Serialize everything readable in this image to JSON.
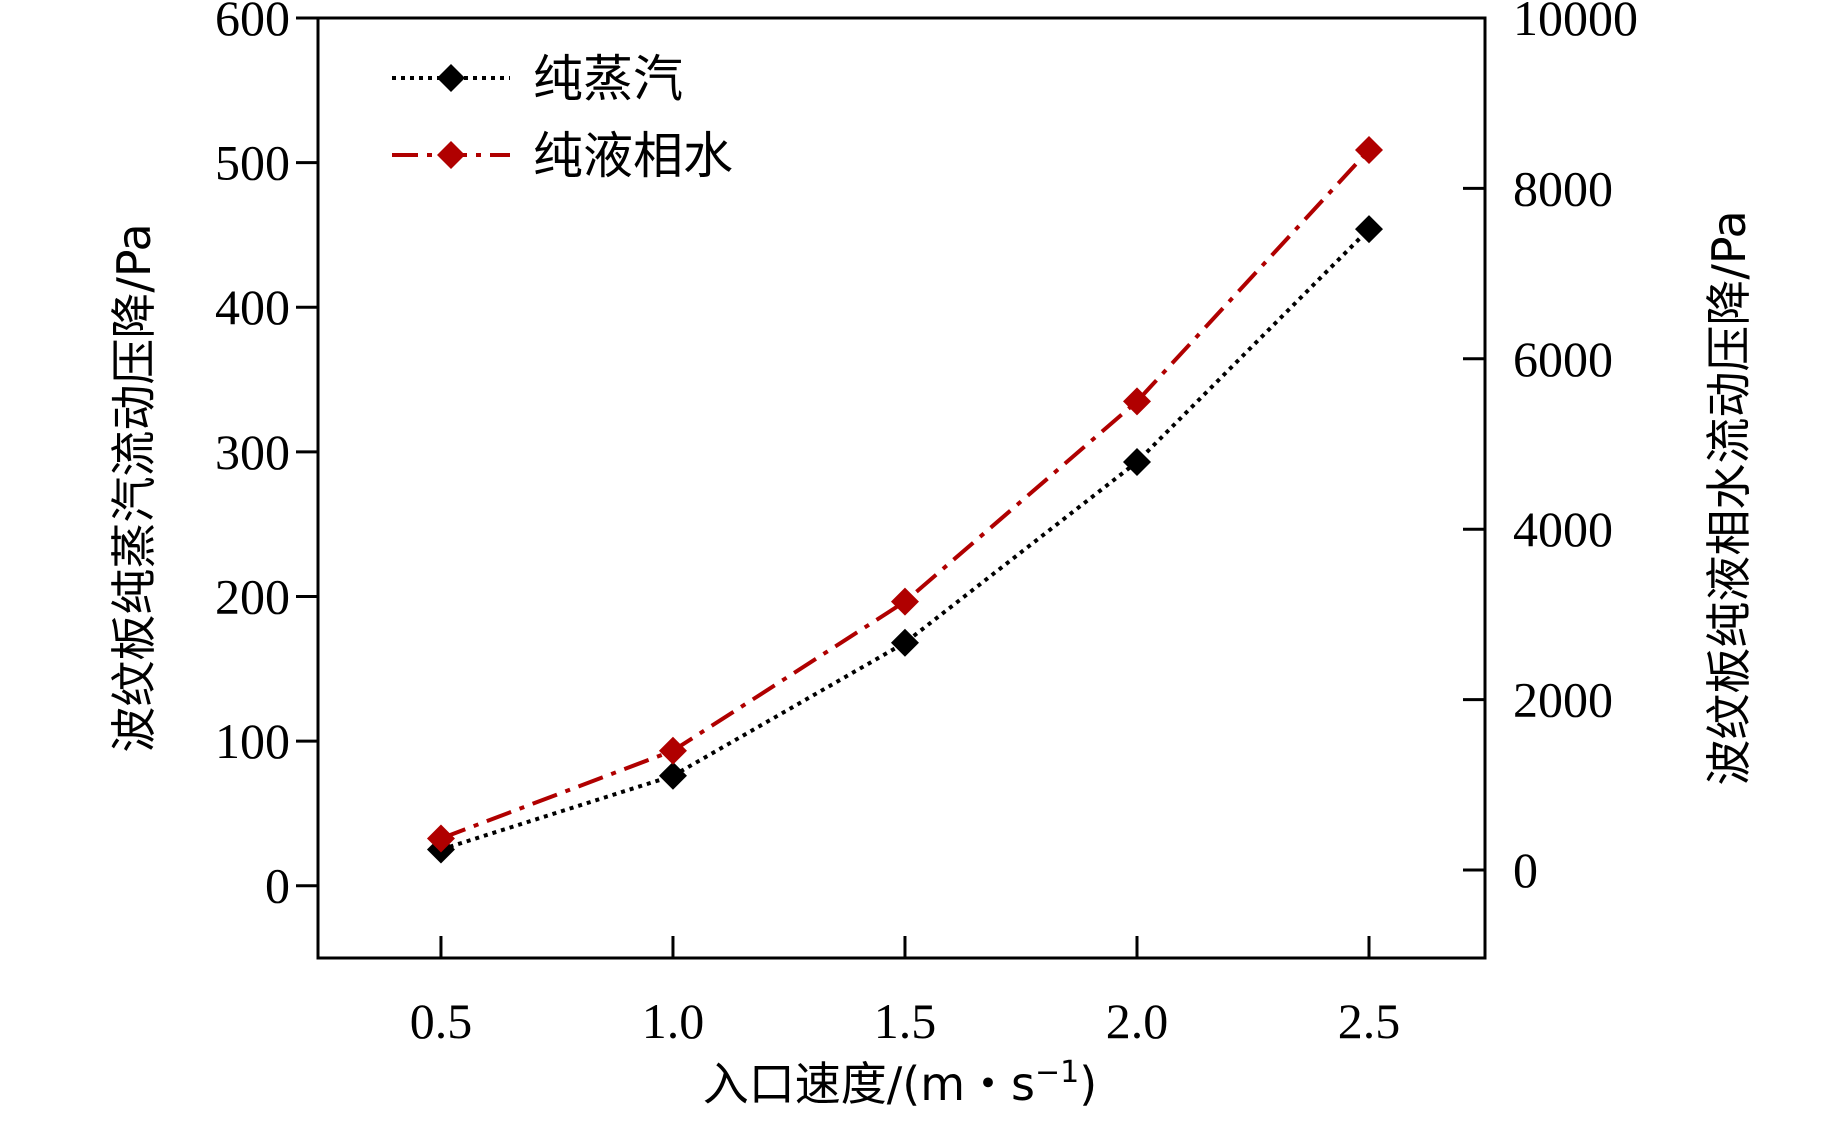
{
  "chart_data": {
    "type": "line",
    "x": [
      0.5,
      1.0,
      1.5,
      2.0,
      2.5
    ],
    "x_tick_labels": [
      "0.5",
      "1.0",
      "1.5",
      "2.0",
      "2.5"
    ],
    "xlim": [
      0.235,
      2.75
    ],
    "xlabel": {
      "text": "入口速度/(m・s",
      "superscript": "−1",
      "close": ")"
    },
    "ylabel_left": "波纹板纯蒸汽流动压降/Pa",
    "ylabel_right": "波纹板纯液相水流动压降/Pa",
    "ylim_left": [
      -50,
      600
    ],
    "ylim_right": [
      -1033,
      10000
    ],
    "yticks_left": [
      0,
      100,
      200,
      300,
      400,
      500,
      600
    ],
    "yticks_right": [
      0,
      2000,
      4000,
      6000,
      8000,
      10000
    ],
    "grid": false,
    "legend_position": "top-left",
    "series": [
      {
        "name": "纯蒸汽",
        "axis": "left",
        "values": [
          25,
          76,
          168,
          293,
          454
        ],
        "color": "#000000",
        "line_style": "dotted",
        "marker": "diamond"
      },
      {
        "name": "纯液相水",
        "axis": "right",
        "values": [
          370,
          1400,
          3150,
          5500,
          8450
        ],
        "color": "#b00000",
        "line_style": "dash-dot",
        "marker": "diamond"
      }
    ]
  }
}
